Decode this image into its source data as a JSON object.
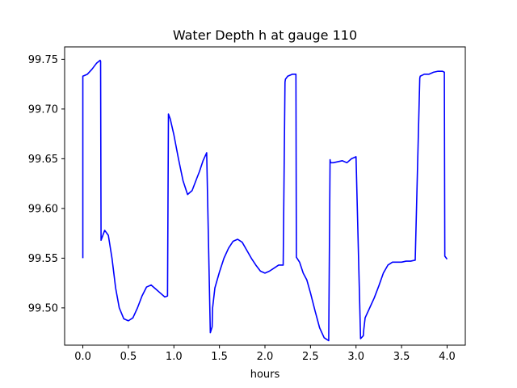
{
  "chart_data": {
    "type": "line",
    "title": "Water Depth h at gauge 110",
    "xlabel": "hours",
    "ylabel": "",
    "xlim": [
      -0.2,
      4.2
    ],
    "ylim": [
      99.4625,
      99.7625
    ],
    "xticks": [
      0.0,
      0.5,
      1.0,
      1.5,
      2.0,
      2.5,
      3.0,
      3.5,
      4.0
    ],
    "xtick_labels": [
      "0.0",
      "0.5",
      "1.0",
      "1.5",
      "2.0",
      "2.5",
      "3.0",
      "3.5",
      "4.0"
    ],
    "yticks": [
      99.5,
      99.55,
      99.6,
      99.65,
      99.7,
      99.75
    ],
    "ytick_labels": [
      "99.50",
      "99.55",
      "99.60",
      "99.65",
      "99.70",
      "99.75"
    ],
    "grid": false,
    "series": [
      {
        "color": "#0000ff",
        "x": [
          0.0,
          0.0,
          0.05,
          0.1,
          0.15,
          0.19,
          0.195,
          0.2,
          0.24,
          0.28,
          0.32,
          0.36,
          0.4,
          0.45,
          0.5,
          0.55,
          0.6,
          0.65,
          0.7,
          0.75,
          0.8,
          0.85,
          0.9,
          0.93,
          0.94,
          0.96,
          1.0,
          1.05,
          1.1,
          1.15,
          1.2,
          1.25,
          1.28,
          1.32,
          1.36,
          1.4,
          1.42,
          1.425,
          1.45,
          1.5,
          1.55,
          1.6,
          1.65,
          1.7,
          1.75,
          1.8,
          1.85,
          1.9,
          1.95,
          2.0,
          2.05,
          2.1,
          2.15,
          2.2,
          2.22,
          2.225,
          2.25,
          2.3,
          2.34,
          2.345,
          2.38,
          2.42,
          2.46,
          2.5,
          2.55,
          2.6,
          2.65,
          2.7,
          2.715,
          2.72,
          2.75,
          2.8,
          2.85,
          2.9,
          2.95,
          3.0,
          3.05,
          3.08,
          3.085,
          3.1,
          3.15,
          3.2,
          3.25,
          3.3,
          3.35,
          3.4,
          3.45,
          3.5,
          3.55,
          3.6,
          3.65,
          3.7,
          3.705,
          3.75,
          3.8,
          3.85,
          3.9,
          3.95,
          3.97,
          3.975,
          4.0
        ],
        "y": [
          99.55,
          99.733,
          99.735,
          99.74,
          99.746,
          99.749,
          99.748,
          99.568,
          99.578,
          99.573,
          99.55,
          99.52,
          99.5,
          99.489,
          99.487,
          99.49,
          99.5,
          99.512,
          99.521,
          99.523,
          99.519,
          99.515,
          99.511,
          99.512,
          99.695,
          99.69,
          99.674,
          99.65,
          99.628,
          99.614,
          99.618,
          99.63,
          99.637,
          99.648,
          99.656,
          99.475,
          99.481,
          99.5,
          99.52,
          99.536,
          99.55,
          99.56,
          99.567,
          99.569,
          99.566,
          99.558,
          99.55,
          99.543,
          99.537,
          99.535,
          99.537,
          99.54,
          99.543,
          99.543,
          99.727,
          99.73,
          99.733,
          99.735,
          99.735,
          99.551,
          99.546,
          99.535,
          99.528,
          99.515,
          99.497,
          99.48,
          99.47,
          99.467,
          99.649,
          99.646,
          99.646,
          99.647,
          99.648,
          99.646,
          99.65,
          99.652,
          99.469,
          99.472,
          99.478,
          99.49,
          99.5,
          99.51,
          99.522,
          99.535,
          99.543,
          99.546,
          99.546,
          99.546,
          99.547,
          99.547,
          99.548,
          99.731,
          99.733,
          99.735,
          99.735,
          99.737,
          99.738,
          99.738,
          99.737,
          99.552,
          99.549
        ]
      }
    ]
  }
}
